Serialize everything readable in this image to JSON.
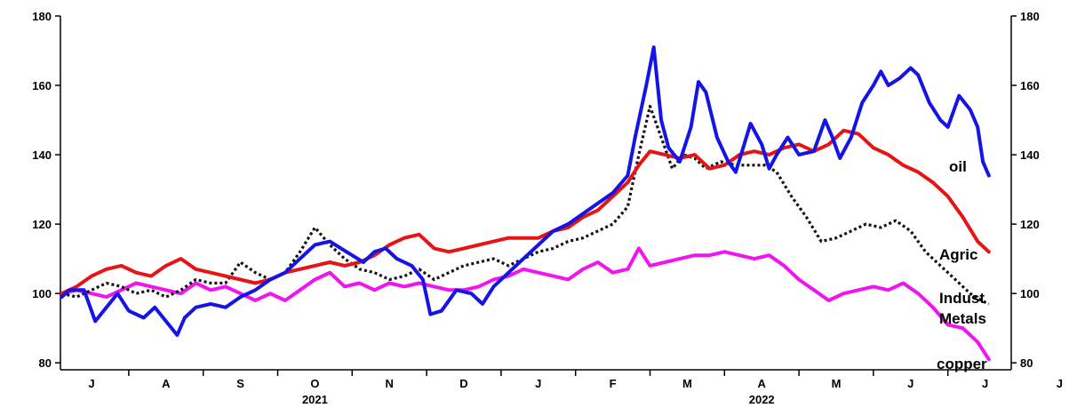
{
  "chart_data": {
    "type": "line",
    "title": "",
    "xlabel": "",
    "ylabel": "",
    "ylim": [
      78,
      180
    ],
    "yticks": [
      80,
      100,
      120,
      140,
      160,
      180
    ],
    "yticks_right": [
      80,
      100,
      120,
      140,
      160,
      180
    ],
    "grid": false,
    "x_months": [
      "J",
      "A",
      "S",
      "O",
      "N",
      "D",
      "J",
      "F",
      "M",
      "A",
      "M",
      "J",
      "J",
      "J"
    ],
    "x_years": [
      {
        "label": "2021",
        "month_index": 3
      },
      {
        "label": "2022",
        "month_index": 9
      }
    ],
    "x_unit": "months since 1 Jul 2021",
    "series": [
      {
        "name": "oil",
        "color": "#1414e6",
        "dash": "solid",
        "points": [
          [
            -0.4,
            99
          ],
          [
            -0.3,
            101
          ],
          [
            -0.1,
            101
          ],
          [
            0.05,
            92
          ],
          [
            0.2,
            96
          ],
          [
            0.35,
            100
          ],
          [
            0.5,
            95
          ],
          [
            0.7,
            93
          ],
          [
            0.85,
            96
          ],
          [
            1.0,
            92
          ],
          [
            1.15,
            88
          ],
          [
            1.25,
            93
          ],
          [
            1.4,
            96
          ],
          [
            1.6,
            97
          ],
          [
            1.8,
            96
          ],
          [
            2.0,
            99
          ],
          [
            2.2,
            101
          ],
          [
            2.4,
            104
          ],
          [
            2.6,
            106
          ],
          [
            2.8,
            110
          ],
          [
            3.0,
            114
          ],
          [
            3.2,
            115
          ],
          [
            3.35,
            113
          ],
          [
            3.5,
            111
          ],
          [
            3.65,
            109
          ],
          [
            3.8,
            112
          ],
          [
            3.95,
            113
          ],
          [
            4.1,
            110
          ],
          [
            4.3,
            108
          ],
          [
            4.45,
            104
          ],
          [
            4.55,
            94
          ],
          [
            4.7,
            95
          ],
          [
            4.9,
            101
          ],
          [
            5.1,
            100
          ],
          [
            5.25,
            97
          ],
          [
            5.4,
            102
          ],
          [
            5.6,
            106
          ],
          [
            5.8,
            110
          ],
          [
            6.0,
            114
          ],
          [
            6.2,
            118
          ],
          [
            6.4,
            120
          ],
          [
            6.6,
            123
          ],
          [
            6.8,
            126
          ],
          [
            7.0,
            129
          ],
          [
            7.2,
            134
          ],
          [
            7.3,
            145
          ],
          [
            7.45,
            160
          ],
          [
            7.55,
            171
          ],
          [
            7.65,
            150
          ],
          [
            7.75,
            142
          ],
          [
            7.9,
            138
          ],
          [
            8.05,
            148
          ],
          [
            8.15,
            161
          ],
          [
            8.25,
            158
          ],
          [
            8.4,
            145
          ],
          [
            8.55,
            138
          ],
          [
            8.65,
            135
          ],
          [
            8.75,
            142
          ],
          [
            8.85,
            149
          ],
          [
            9.0,
            143
          ],
          [
            9.1,
            136
          ],
          [
            9.2,
            140
          ],
          [
            9.35,
            145
          ],
          [
            9.5,
            140
          ],
          [
            9.7,
            141
          ],
          [
            9.85,
            150
          ],
          [
            9.95,
            145
          ],
          [
            10.05,
            139
          ],
          [
            10.2,
            145
          ],
          [
            10.35,
            155
          ],
          [
            10.5,
            160
          ],
          [
            10.6,
            164
          ],
          [
            10.7,
            160
          ],
          [
            10.85,
            162
          ],
          [
            11.0,
            165
          ],
          [
            11.1,
            163
          ],
          [
            11.25,
            155
          ],
          [
            11.4,
            150
          ],
          [
            11.5,
            148
          ],
          [
            11.65,
            157
          ],
          [
            11.8,
            153
          ],
          [
            11.9,
            148
          ],
          [
            11.97,
            138
          ],
          [
            12.05,
            134
          ]
        ]
      },
      {
        "name": "Agric",
        "color": "#e61414",
        "dash": "solid",
        "points": [
          [
            -0.4,
            100
          ],
          [
            -0.2,
            102
          ],
          [
            0.0,
            105
          ],
          [
            0.2,
            107
          ],
          [
            0.4,
            108
          ],
          [
            0.6,
            106
          ],
          [
            0.8,
            105
          ],
          [
            1.0,
            108
          ],
          [
            1.2,
            110
          ],
          [
            1.4,
            107
          ],
          [
            1.6,
            106
          ],
          [
            1.8,
            105
          ],
          [
            2.0,
            104
          ],
          [
            2.2,
            103
          ],
          [
            2.4,
            104
          ],
          [
            2.6,
            106
          ],
          [
            2.8,
            107
          ],
          [
            3.0,
            108
          ],
          [
            3.2,
            109
          ],
          [
            3.4,
            108
          ],
          [
            3.6,
            109
          ],
          [
            3.8,
            111
          ],
          [
            4.0,
            114
          ],
          [
            4.2,
            116
          ],
          [
            4.4,
            117
          ],
          [
            4.6,
            113
          ],
          [
            4.8,
            112
          ],
          [
            5.0,
            113
          ],
          [
            5.2,
            114
          ],
          [
            5.4,
            115
          ],
          [
            5.6,
            116
          ],
          [
            5.8,
            116
          ],
          [
            6.0,
            116
          ],
          [
            6.2,
            118
          ],
          [
            6.4,
            119
          ],
          [
            6.6,
            122
          ],
          [
            6.8,
            124
          ],
          [
            7.0,
            128
          ],
          [
            7.2,
            132
          ],
          [
            7.35,
            137
          ],
          [
            7.5,
            141
          ],
          [
            7.7,
            140
          ],
          [
            7.9,
            139
          ],
          [
            8.1,
            140
          ],
          [
            8.3,
            136
          ],
          [
            8.5,
            137
          ],
          [
            8.7,
            140
          ],
          [
            8.9,
            141
          ],
          [
            9.1,
            140
          ],
          [
            9.3,
            142
          ],
          [
            9.5,
            143
          ],
          [
            9.7,
            141
          ],
          [
            9.9,
            143
          ],
          [
            10.1,
            147
          ],
          [
            10.3,
            146
          ],
          [
            10.5,
            142
          ],
          [
            10.7,
            140
          ],
          [
            10.9,
            137
          ],
          [
            11.1,
            135
          ],
          [
            11.3,
            132
          ],
          [
            11.5,
            128
          ],
          [
            11.7,
            122
          ],
          [
            11.9,
            115
          ],
          [
            12.05,
            112
          ]
        ]
      },
      {
        "name": "Indust Metals",
        "color": "#111111",
        "dash": "3,3",
        "points": [
          [
            -0.4,
            100
          ],
          [
            -0.2,
            99
          ],
          [
            0.0,
            101
          ],
          [
            0.2,
            103
          ],
          [
            0.4,
            102
          ],
          [
            0.6,
            100
          ],
          [
            0.8,
            101
          ],
          [
            1.0,
            99
          ],
          [
            1.2,
            101
          ],
          [
            1.4,
            104
          ],
          [
            1.6,
            103
          ],
          [
            1.8,
            103
          ],
          [
            2.0,
            109
          ],
          [
            2.2,
            106
          ],
          [
            2.4,
            104
          ],
          [
            2.6,
            106
          ],
          [
            2.8,
            112
          ],
          [
            3.0,
            119
          ],
          [
            3.2,
            114
          ],
          [
            3.4,
            110
          ],
          [
            3.6,
            107
          ],
          [
            3.8,
            106
          ],
          [
            4.0,
            104
          ],
          [
            4.2,
            105
          ],
          [
            4.4,
            107
          ],
          [
            4.6,
            104
          ],
          [
            4.8,
            106
          ],
          [
            5.0,
            108
          ],
          [
            5.2,
            109
          ],
          [
            5.4,
            110
          ],
          [
            5.6,
            108
          ],
          [
            5.8,
            110
          ],
          [
            6.0,
            112
          ],
          [
            6.2,
            113
          ],
          [
            6.4,
            115
          ],
          [
            6.6,
            116
          ],
          [
            6.8,
            118
          ],
          [
            7.0,
            120
          ],
          [
            7.2,
            125
          ],
          [
            7.35,
            140
          ],
          [
            7.5,
            154
          ],
          [
            7.65,
            145
          ],
          [
            7.8,
            136
          ],
          [
            7.95,
            140
          ],
          [
            8.1,
            139
          ],
          [
            8.25,
            136
          ],
          [
            8.45,
            138
          ],
          [
            8.65,
            137
          ],
          [
            8.85,
            137
          ],
          [
            9.05,
            137
          ],
          [
            9.2,
            135
          ],
          [
            9.4,
            128
          ],
          [
            9.6,
            122
          ],
          [
            9.8,
            115
          ],
          [
            10.0,
            116
          ],
          [
            10.2,
            118
          ],
          [
            10.4,
            120
          ],
          [
            10.6,
            119
          ],
          [
            10.8,
            121
          ],
          [
            11.0,
            118
          ],
          [
            11.2,
            112
          ],
          [
            11.4,
            108
          ],
          [
            11.6,
            104
          ],
          [
            11.8,
            100
          ],
          [
            11.95,
            98
          ],
          [
            12.05,
            97
          ]
        ]
      },
      {
        "name": "copper",
        "color": "#f014f0",
        "dash": "solid",
        "points": [
          [
            -0.4,
            100
          ],
          [
            -0.2,
            101
          ],
          [
            0.0,
            100
          ],
          [
            0.2,
            99
          ],
          [
            0.4,
            101
          ],
          [
            0.6,
            103
          ],
          [
            0.8,
            102
          ],
          [
            1.0,
            101
          ],
          [
            1.2,
            100
          ],
          [
            1.4,
            103
          ],
          [
            1.6,
            101
          ],
          [
            1.8,
            102
          ],
          [
            2.0,
            100
          ],
          [
            2.2,
            98
          ],
          [
            2.4,
            100
          ],
          [
            2.6,
            98
          ],
          [
            2.8,
            101
          ],
          [
            3.0,
            104
          ],
          [
            3.2,
            106
          ],
          [
            3.4,
            102
          ],
          [
            3.6,
            103
          ],
          [
            3.8,
            101
          ],
          [
            4.0,
            103
          ],
          [
            4.2,
            102
          ],
          [
            4.4,
            103
          ],
          [
            4.6,
            102
          ],
          [
            4.8,
            101
          ],
          [
            5.0,
            101
          ],
          [
            5.2,
            102
          ],
          [
            5.4,
            104
          ],
          [
            5.6,
            105
          ],
          [
            5.8,
            107
          ],
          [
            6.0,
            106
          ],
          [
            6.2,
            105
          ],
          [
            6.4,
            104
          ],
          [
            6.6,
            107
          ],
          [
            6.8,
            109
          ],
          [
            7.0,
            106
          ],
          [
            7.2,
            107
          ],
          [
            7.35,
            113
          ],
          [
            7.5,
            108
          ],
          [
            7.7,
            109
          ],
          [
            7.9,
            110
          ],
          [
            8.1,
            111
          ],
          [
            8.3,
            111
          ],
          [
            8.5,
            112
          ],
          [
            8.7,
            111
          ],
          [
            8.9,
            110
          ],
          [
            9.1,
            111
          ],
          [
            9.3,
            108
          ],
          [
            9.5,
            104
          ],
          [
            9.7,
            101
          ],
          [
            9.9,
            98
          ],
          [
            10.1,
            100
          ],
          [
            10.3,
            101
          ],
          [
            10.5,
            102
          ],
          [
            10.7,
            101
          ],
          [
            10.9,
            103
          ],
          [
            11.1,
            100
          ],
          [
            11.3,
            96
          ],
          [
            11.5,
            91
          ],
          [
            11.7,
            90
          ],
          [
            11.9,
            86
          ],
          [
            12.05,
            81
          ]
        ]
      }
    ],
    "series_labels": [
      {
        "series": "oil",
        "text": "oil"
      },
      {
        "series": "Agric",
        "text": "Agric"
      },
      {
        "series": "Indust Metals",
        "text": "Indust"
      },
      {
        "series": "Indust Metals",
        "text": "Metals"
      },
      {
        "series": "copper",
        "text": "copper"
      }
    ]
  }
}
